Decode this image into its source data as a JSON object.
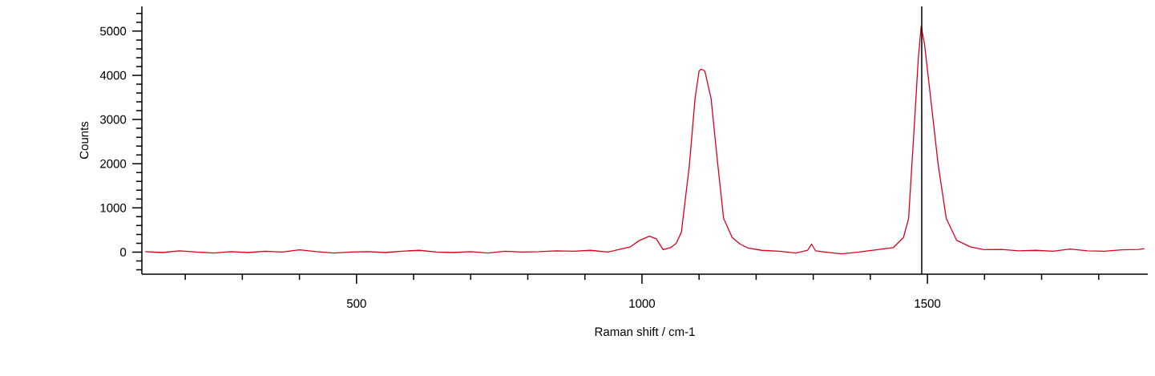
{
  "chart_data": {
    "type": "line",
    "xlabel": "Raman shift / cm-1",
    "ylabel": "Counts",
    "xlim": [
      124,
      1886
    ],
    "ylim": [
      -500,
      5560
    ],
    "xticks": [
      {
        "value": 200,
        "label": null
      },
      {
        "value": 300,
        "label": null
      },
      {
        "value": 400,
        "label": null
      },
      500,
      {
        "value": 600,
        "label": null
      },
      {
        "value": 700,
        "label": null
      },
      {
        "value": 800,
        "label": null
      },
      {
        "value": 900,
        "label": null
      },
      1000,
      {
        "value": 1100,
        "label": null
      },
      {
        "value": 1200,
        "label": null
      },
      {
        "value": 1300,
        "label": null
      },
      {
        "value": 1400,
        "label": null
      },
      1500,
      {
        "value": 1600,
        "label": null
      },
      {
        "value": 1700,
        "label": null
      },
      {
        "value": 1800,
        "label": null
      }
    ],
    "yticks": [
      {
        "value": -400,
        "label": null
      },
      {
        "value": -200,
        "label": null
      },
      0,
      {
        "value": 200,
        "label": null
      },
      {
        "value": 400,
        "label": null
      },
      {
        "value": 600,
        "label": null
      },
      {
        "value": 800,
        "label": null
      },
      1000,
      {
        "value": 1200,
        "label": null
      },
      {
        "value": 1400,
        "label": null
      },
      {
        "value": 1600,
        "label": null
      },
      {
        "value": 1800,
        "label": null
      },
      2000,
      {
        "value": 2200,
        "label": null
      },
      {
        "value": 2400,
        "label": null
      },
      {
        "value": 2600,
        "label": null
      },
      {
        "value": 2800,
        "label": null
      },
      3000,
      {
        "value": 3200,
        "label": null
      },
      {
        "value": 3400,
        "label": null
      },
      {
        "value": 3600,
        "label": null
      },
      {
        "value": 3800,
        "label": null
      },
      4000,
      {
        "value": 4200,
        "label": null
      },
      {
        "value": 4400,
        "label": null
      },
      {
        "value": 4600,
        "label": null
      },
      {
        "value": 4800,
        "label": null
      },
      5000,
      {
        "value": 5200,
        "label": null
      },
      {
        "value": 5400,
        "label": null
      }
    ],
    "grid": false,
    "legend": false,
    "marker": "none",
    "line_style": "solid",
    "ref_lines": [
      {
        "axis": "x",
        "value": 1490,
        "color": "#000000"
      }
    ],
    "x": [
      130,
      160,
      190,
      220,
      250,
      280,
      310,
      340,
      370,
      400,
      430,
      460,
      490,
      520,
      550,
      580,
      610,
      640,
      670,
      700,
      730,
      760,
      790,
      820,
      850,
      880,
      910,
      940,
      960,
      980,
      995,
      1013,
      1025,
      1037,
      1050,
      1060,
      1069,
      1083,
      1093,
      1100,
      1104,
      1110,
      1121,
      1132,
      1143,
      1158,
      1172,
      1186,
      1210,
      1240,
      1270,
      1290,
      1297,
      1304,
      1320,
      1350,
      1380,
      1410,
      1440,
      1458,
      1467,
      1477,
      1484,
      1489,
      1495,
      1502,
      1519,
      1533,
      1551,
      1575,
      1599,
      1630,
      1660,
      1690,
      1720,
      1750,
      1780,
      1810,
      1840,
      1870,
      1880
    ],
    "series": [
      {
        "color": "#d9001b",
        "values": [
          10,
          -10,
          30,
          0,
          -20,
          10,
          -10,
          20,
          0,
          50,
          10,
          -20,
          0,
          10,
          -10,
          20,
          40,
          0,
          -10,
          10,
          -20,
          20,
          0,
          10,
          30,
          20,
          40,
          0,
          60,
          120,
          260,
          360,
          300,
          55,
          100,
          200,
          450,
          1960,
          3480,
          4100,
          4140,
          4100,
          3480,
          2080,
          760,
          330,
          180,
          90,
          40,
          20,
          -20,
          40,
          180,
          30,
          0,
          -40,
          0,
          50,
          100,
          330,
          760,
          2860,
          4380,
          5110,
          4700,
          3900,
          1960,
          760,
          270,
          120,
          55,
          60,
          30,
          40,
          20,
          70,
          30,
          20,
          50,
          60,
          80
        ]
      }
    ]
  }
}
